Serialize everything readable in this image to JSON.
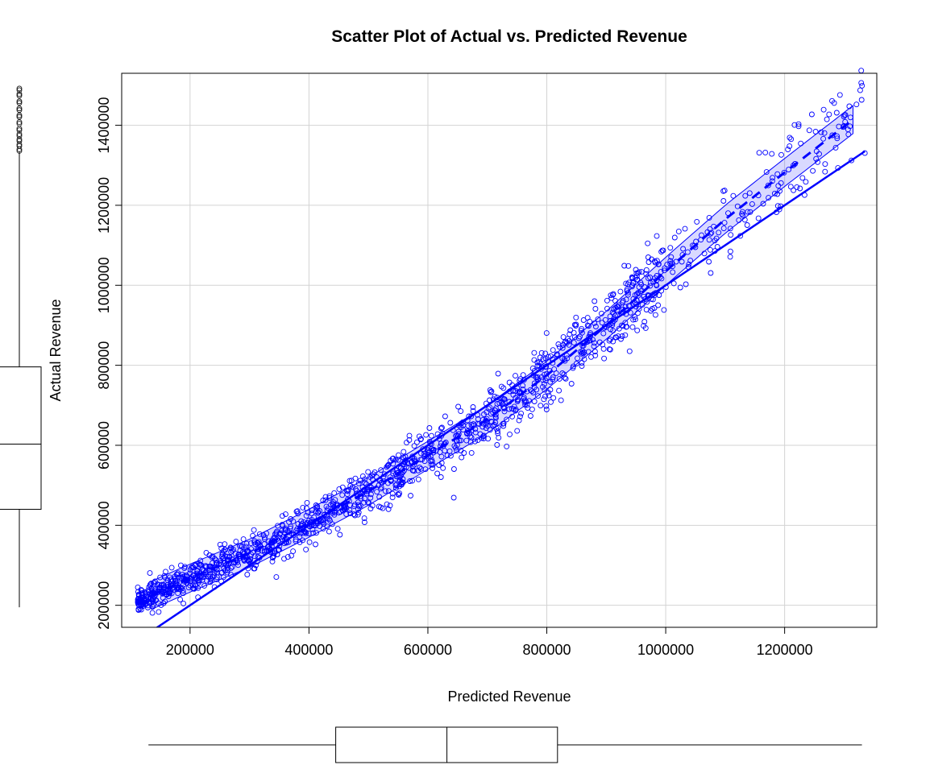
{
  "chart_data": {
    "type": "scatter",
    "title": "Scatter Plot of Actual vs. Predicted Revenue",
    "xlabel": "Predicted Revenue",
    "ylabel": "Actual Revenue",
    "xlim": [
      85000,
      1355000
    ],
    "ylim": [
      145000,
      1530000
    ],
    "x_ticks": [
      200000,
      400000,
      600000,
      800000,
      1000000,
      1200000
    ],
    "y_ticks": [
      200000,
      400000,
      600000,
      800000,
      1000000,
      1200000,
      1400000
    ],
    "x_tick_labels": [
      "200000",
      "400000",
      "600000",
      "800000",
      "1000000",
      "1200000"
    ],
    "y_tick_labels": [
      "200000",
      "400000",
      "600000",
      "800000",
      "1000000",
      "1200000",
      "1400000"
    ],
    "grid": true,
    "point_color": "#0000ff",
    "n_points": 1500,
    "x_range_of_points": [
      112000,
      1335000
    ],
    "trend": {
      "description_free": true,
      "smooth_curve": [
        [
          135000,
          225000
        ],
        [
          200000,
          268000
        ],
        [
          300000,
          330000
        ],
        [
          400000,
          405000
        ],
        [
          500000,
          485000
        ],
        [
          600000,
          575000
        ],
        [
          700000,
          665000
        ],
        [
          800000,
          775000
        ],
        [
          900000,
          900000
        ],
        [
          1000000,
          1035000
        ],
        [
          1100000,
          1165000
        ],
        [
          1200000,
          1282000
        ],
        [
          1320000,
          1420000
        ]
      ],
      "band_halfwidth": 35000,
      "reference_line": [
        [
          112000,
          112000
        ],
        [
          1335000,
          1335000
        ]
      ]
    },
    "x_boxplot": {
      "min": 130000,
      "q1": 445000,
      "median": 632000,
      "q3": 818000,
      "max": 1330000
    },
    "y_boxplot": {
      "min": 195000,
      "q1": 440000,
      "median": 603000,
      "q3": 796000,
      "whisker_max": 1335000,
      "outliers": [
        1340000,
        1352000,
        1365000,
        1378000,
        1392000,
        1408000,
        1425000,
        1442000,
        1460000,
        1478000,
        1492000
      ]
    }
  }
}
